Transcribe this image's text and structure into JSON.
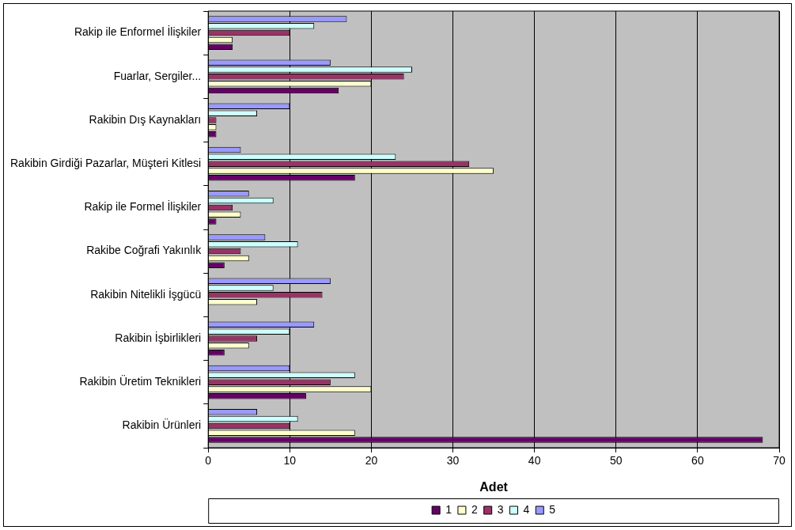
{
  "chart_data": {
    "type": "bar",
    "orientation": "horizontal",
    "xlabel": "Adet",
    "categories": [
      "Rakip ile Enformel İlişkiler",
      "Fuarlar, Sergiler...",
      "Rakibin Dış Kaynakları",
      "Rakibin Girdiği Pazarlar, Müşteri Kitlesi",
      "Rakip ile Formel İlişkiler",
      "Rakibe Coğrafi Yakınlık",
      "Rakibin Nitelikli İşgücü",
      "Rakibin İşbirlikleri",
      "Rakibin Üretim Teknikleri",
      "Rakibin Ürünleri"
    ],
    "series": [
      {
        "name": "1",
        "color": "#660066",
        "values": [
          3,
          16,
          1,
          18,
          1,
          2,
          0,
          2,
          12,
          68
        ]
      },
      {
        "name": "2",
        "color": "#ffffcc",
        "values": [
          3,
          20,
          1,
          35,
          4,
          5,
          6,
          5,
          20,
          18
        ]
      },
      {
        "name": "3",
        "color": "#993366",
        "values": [
          10,
          24,
          1,
          32,
          3,
          4,
          14,
          6,
          15,
          10
        ]
      },
      {
        "name": "4",
        "color": "#ccffff",
        "values": [
          13,
          25,
          6,
          23,
          8,
          11,
          8,
          10,
          18,
          11
        ]
      },
      {
        "name": "5",
        "color": "#9999ff",
        "values": [
          17,
          15,
          10,
          4,
          5,
          7,
          15,
          13,
          10,
          6
        ]
      }
    ],
    "xlim": [
      0,
      70
    ],
    "xticks": [
      0,
      10,
      20,
      30,
      40,
      50,
      60,
      70
    ],
    "grid": "x",
    "legend": "bottom"
  }
}
